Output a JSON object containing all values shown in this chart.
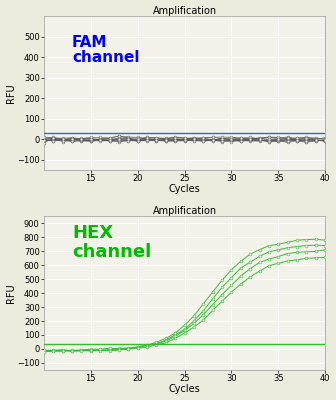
{
  "title": "Amplification",
  "xlabel": "Cycles",
  "ylabel": "RFU",
  "fam_ylim": [
    -150,
    600
  ],
  "fam_yticks": [
    -100,
    0,
    100,
    200,
    300,
    400,
    500
  ],
  "hex_ylim": [
    -150,
    950
  ],
  "hex_yticks": [
    -100,
    0,
    100,
    200,
    300,
    400,
    500,
    600,
    700,
    800,
    900
  ],
  "xlim": [
    10,
    40
  ],
  "xticks": [
    15,
    20,
    25,
    30,
    35,
    40
  ],
  "fam_label": "FAM\nchannel",
  "hex_label": "HEX\nchannel",
  "fam_label_color": "#0000FF",
  "hex_label_color": "#00BB00",
  "fam_threshold": 28,
  "hex_threshold": 35,
  "fam_line_color": "#3366CC",
  "hex_line_color": "#33BB33",
  "background_color": "#F2F2EA",
  "grid_color": "#FFFFFF",
  "title_fontsize": 7,
  "axis_label_fontsize": 7,
  "tick_fontsize": 6,
  "fam_annotation_fontsize": 11,
  "hex_annotation_fontsize": 13
}
